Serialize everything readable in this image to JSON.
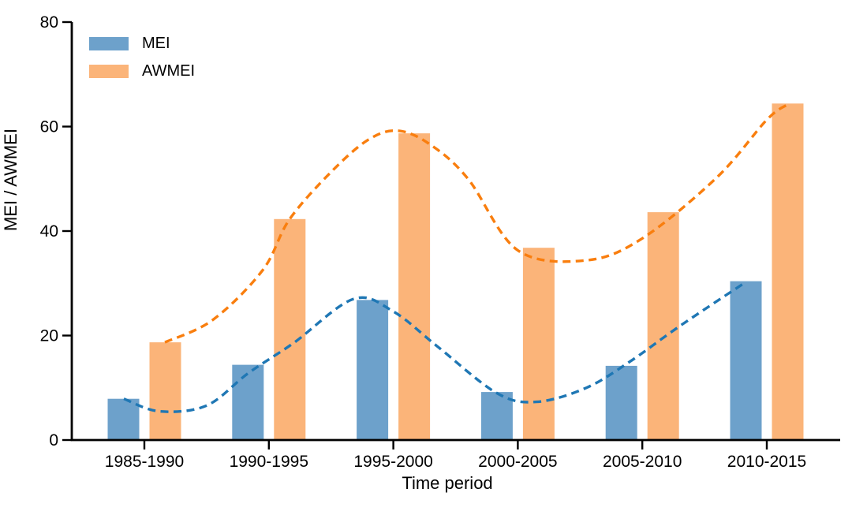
{
  "chart_data": {
    "type": "bar",
    "title": "",
    "xlabel": "Time period",
    "ylabel": "MEI / AWMEI",
    "categories": [
      "1985-1990",
      "1990-1995",
      "1995-2000",
      "2000-2005",
      "2005-2010",
      "2010-2015"
    ],
    "series": [
      {
        "name": "MEI",
        "bar_color": "#6DA1CB",
        "line_color": "#1F77B4",
        "values": [
          7.9,
          14.4,
          26.8,
          9.2,
          14.2,
          30.4
        ],
        "trend_line": [
          [
            -0.165,
            7.9
          ],
          [
            0.12,
            5.5
          ],
          [
            0.5,
            6.6
          ],
          [
            0.835,
            12.8
          ],
          [
            1.2,
            18.6
          ],
          [
            1.68,
            27.0
          ],
          [
            2.0,
            24.6
          ],
          [
            2.35,
            18.0
          ],
          [
            2.83,
            9.0
          ],
          [
            3.15,
            7.3
          ],
          [
            3.55,
            10.0
          ],
          [
            3.9,
            15.0
          ],
          [
            4.3,
            21.8
          ],
          [
            4.835,
            30.3
          ]
        ]
      },
      {
        "name": "AWMEI",
        "bar_color": "#FBB479",
        "line_color": "#F97E0E",
        "values": [
          18.7,
          42.3,
          58.7,
          36.8,
          43.6,
          64.4
        ],
        "trend_line": [
          [
            0.165,
            18.7
          ],
          [
            0.55,
            23.0
          ],
          [
            0.95,
            32.5
          ],
          [
            1.165,
            42.2
          ],
          [
            1.5,
            51.3
          ],
          [
            1.8,
            57.5
          ],
          [
            2.04,
            59.2
          ],
          [
            2.3,
            56.5
          ],
          [
            2.6,
            50.0
          ],
          [
            3.0,
            36.3
          ],
          [
            3.55,
            34.4
          ],
          [
            4.0,
            38.6
          ],
          [
            4.6,
            50.3
          ],
          [
            5.0,
            61.3
          ],
          [
            5.165,
            64.2
          ]
        ]
      }
    ],
    "y_ticks": [
      0,
      20,
      40,
      60,
      80
    ],
    "ylim": [
      0,
      80
    ],
    "grid": false,
    "legend_position": "upper-left",
    "trend_style": "dashed",
    "axis_color": "#000000"
  }
}
